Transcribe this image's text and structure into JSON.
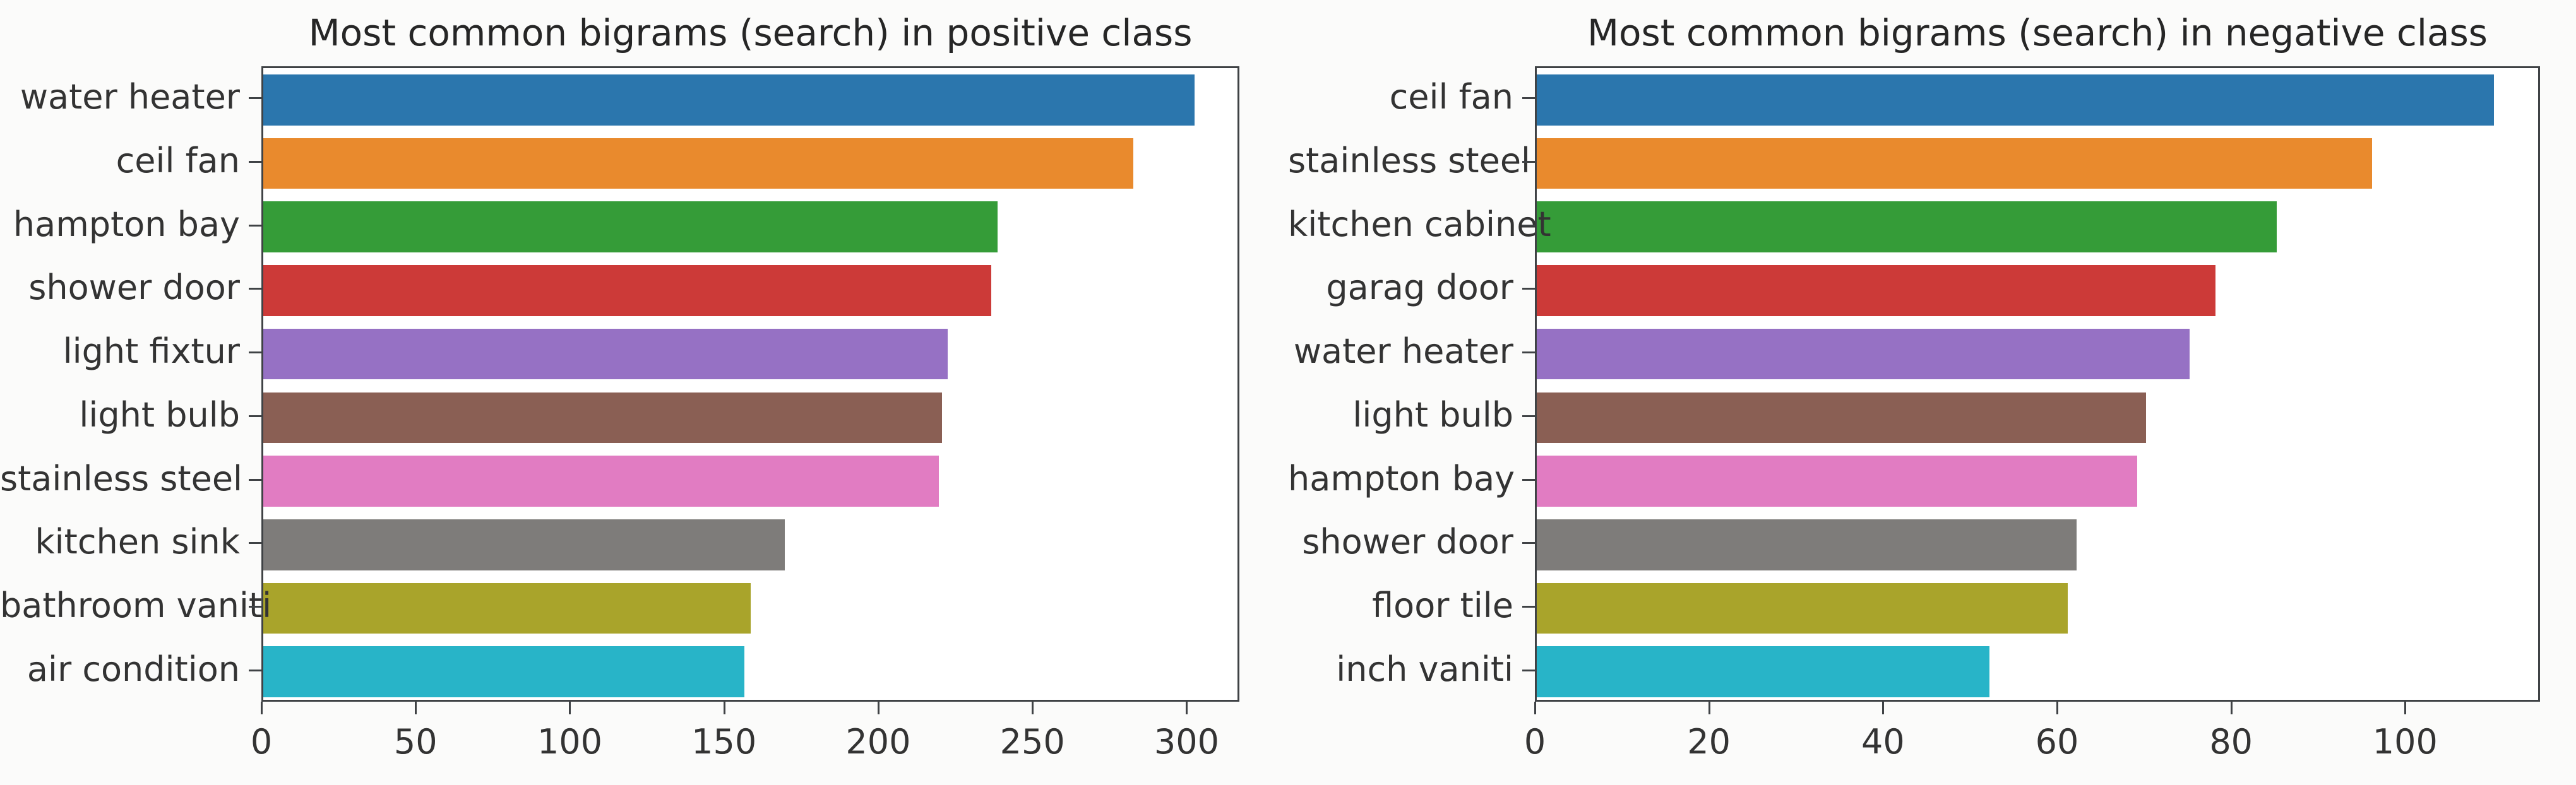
{
  "page": {
    "background_color": "#fbfbfa",
    "plot_background_color": "#ffffff",
    "spine_color": "#3f4245",
    "text_color": "#262626"
  },
  "palette": {
    "tab10": [
      "#2b76ad",
      "#e98a2d",
      "#359c38",
      "#cc3a38",
      "#9671c4",
      "#8a5f54",
      "#e17cc2",
      "#7e7c7a",
      "#a9a42b",
      "#28b4c8"
    ]
  },
  "chart_data": [
    {
      "type": "bar",
      "orientation": "horizontal",
      "title": "Most common bigrams (search) in positive class",
      "categories": [
        "water heater",
        "ceil fan",
        "hampton bay",
        "shower door",
        "light fixtur",
        "light bulb",
        "stainless steel",
        "kitchen sink",
        "bathroom vaniti",
        "air condition"
      ],
      "values": [
        302,
        282,
        238,
        236,
        222,
        220,
        219,
        169,
        158,
        156
      ],
      "bar_colors": [
        "#2b76ad",
        "#e98a2d",
        "#359c38",
        "#cc3a38",
        "#9671c4",
        "#8a5f54",
        "#e17cc2",
        "#7e7c7a",
        "#a9a42b",
        "#28b4c8"
      ],
      "xticks": [
        0,
        50,
        100,
        150,
        200,
        250,
        300
      ],
      "xlim": [
        0,
        317.1
      ],
      "xlabel": "",
      "ylabel": "",
      "grid": false,
      "legend": "none"
    },
    {
      "type": "bar",
      "orientation": "horizontal",
      "title": "Most common bigrams (search) in negative class",
      "categories": [
        "ceil fan",
        "stainless steel",
        "kitchen cabinet",
        "garag door",
        "water heater",
        "light bulb",
        "hampton bay",
        "shower door",
        "floor tile",
        "inch vaniti"
      ],
      "values": [
        110,
        96,
        85,
        78,
        75,
        70,
        69,
        62,
        61,
        52
      ],
      "bar_colors": [
        "#2b76ad",
        "#e98a2d",
        "#359c38",
        "#cc3a38",
        "#9671c4",
        "#8a5f54",
        "#e17cc2",
        "#7e7c7a",
        "#a9a42b",
        "#28b4c8"
      ],
      "xticks": [
        0,
        20,
        40,
        60,
        80,
        100
      ],
      "xlim": [
        0,
        115.5
      ],
      "xlabel": "",
      "ylabel": "",
      "grid": false,
      "legend": "none"
    }
  ]
}
